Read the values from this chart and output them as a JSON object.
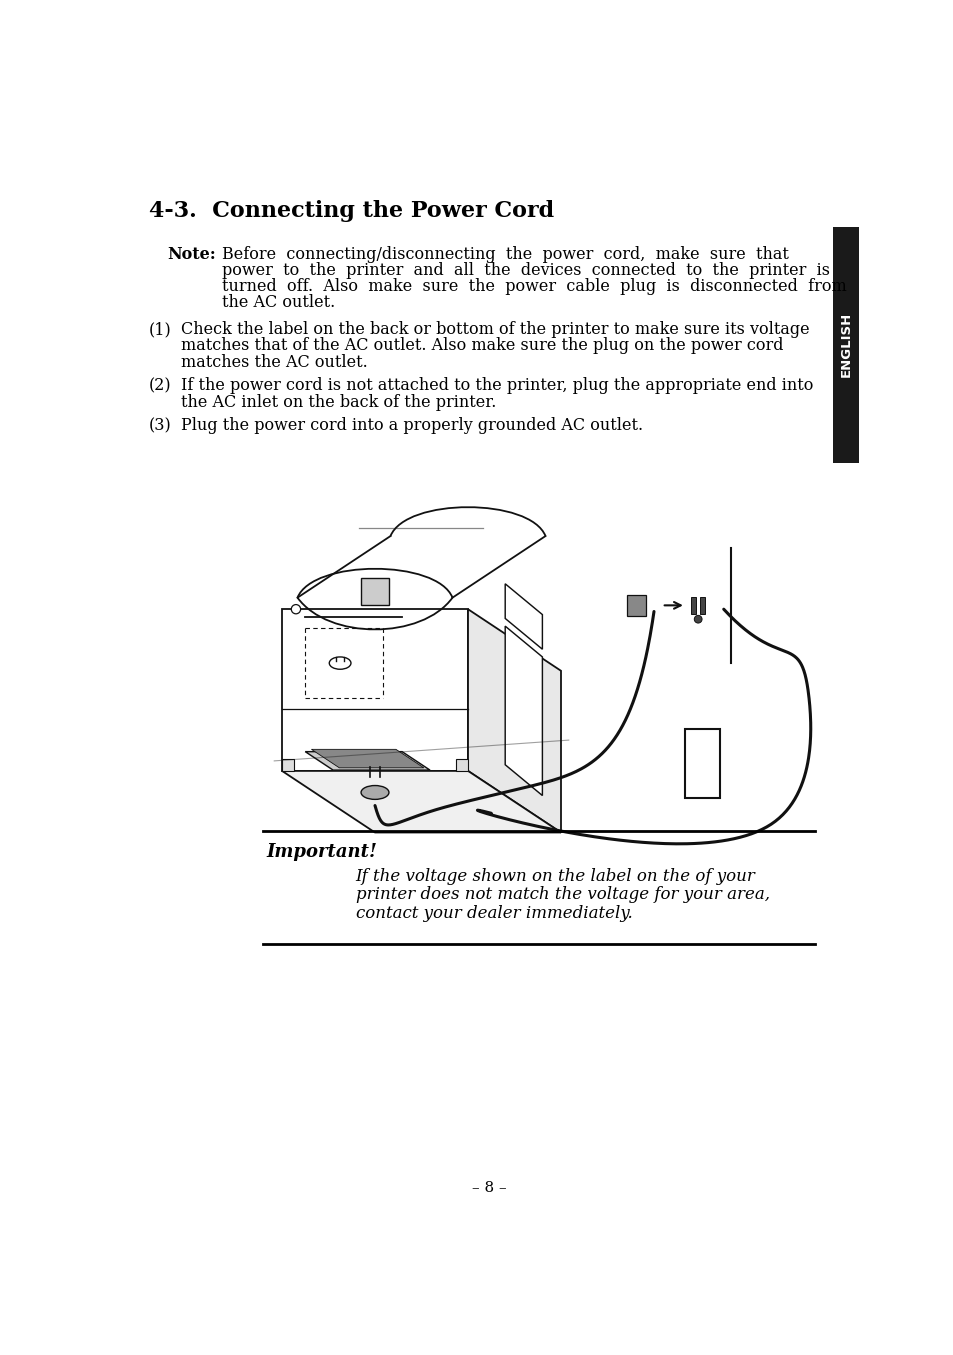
{
  "title": "4-3.  Connecting the Power Cord",
  "bg_color": "#ffffff",
  "text_color": "#000000",
  "sidebar_color": "#1a1a1a",
  "sidebar_text": "ENGLISH",
  "note_label": "Note:",
  "note_lines": [
    "Before  connecting/disconnecting  the  power  cord,  make  sure  that",
    "power  to  the  printer  and  all  the  devices  connected  to  the  printer  is",
    "turned  off.  Also  make  sure  the  power  cable  plug  is  disconnected  from",
    "the AC outlet."
  ],
  "item1_num": "(1)",
  "item1_lines": [
    "Check the label on the back or bottom of the printer to make sure its voltage",
    "matches that of the AC outlet. Also make sure the plug on the power cord",
    "matches the AC outlet."
  ],
  "item2_num": "(2)",
  "item2_lines": [
    "If the power cord is not attached to the printer, plug the appropriate end into",
    "the AC inlet on the back of the printer."
  ],
  "item3_num": "(3)",
  "item3_lines": [
    "Plug the power cord into a properly grounded AC outlet."
  ],
  "important_label": "Important!",
  "important_lines": [
    "If the voltage shown on the label on the of your",
    "printer does not match the voltage for your area,",
    "contact your dealer immediately."
  ],
  "footer": "– 8 –",
  "title_fontsize": 16,
  "body_fontsize": 11.5,
  "note_fontsize": 11.5,
  "important_fontsize": 12
}
